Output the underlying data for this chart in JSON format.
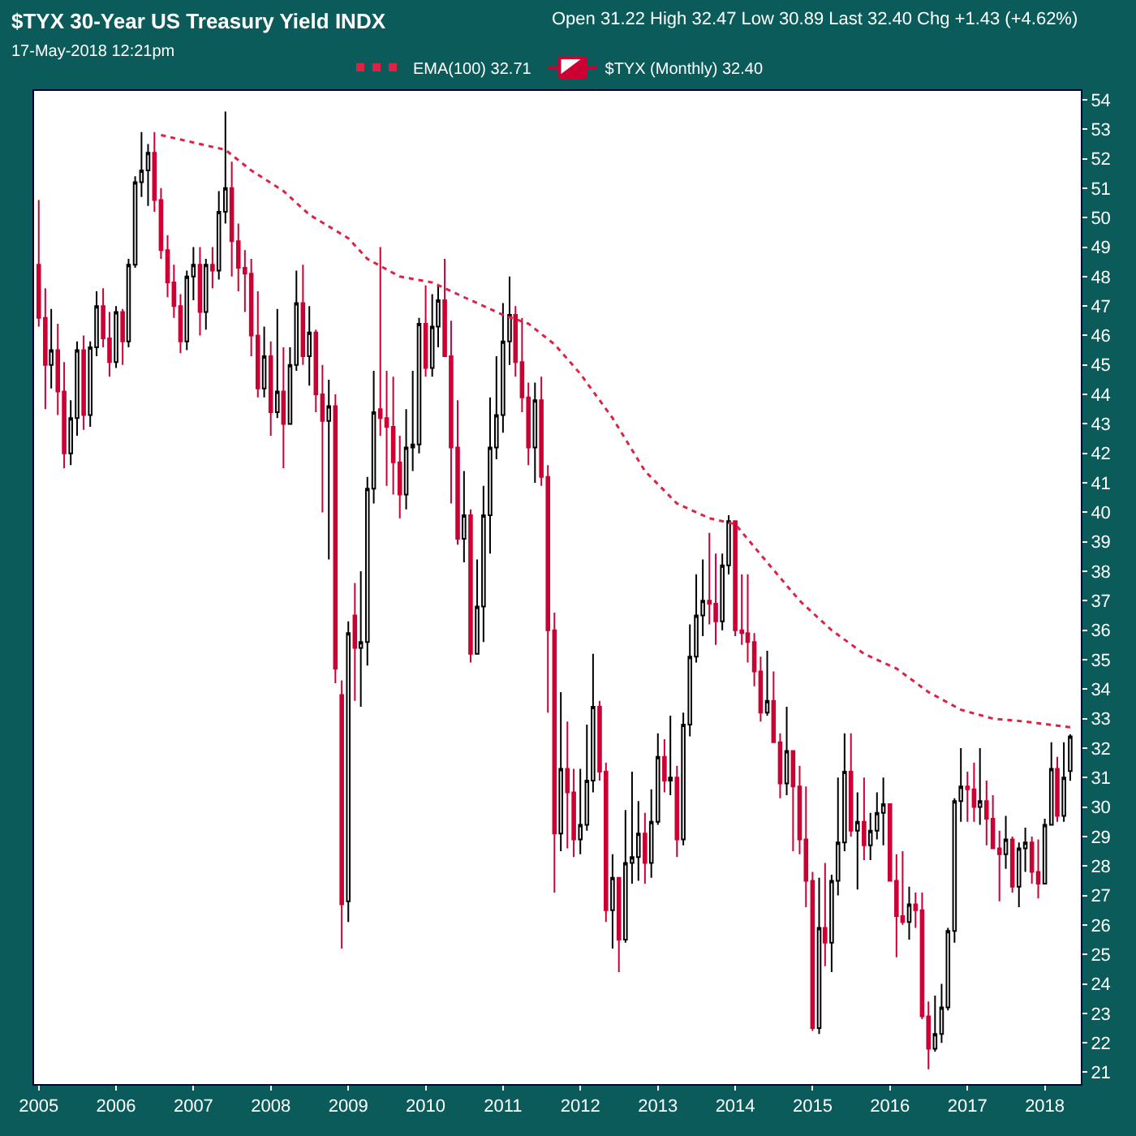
{
  "chart_data": {
    "type": "candlestick",
    "title": "$TYX 30-Year US Treasury Yield INDX",
    "subtitle": "17-May-2018 12:21pm",
    "annotations": [
      "Open 31.22 High 32.47 Low 30.89 Last 32.40 Chg +1.43 (+4.62%)"
    ],
    "x": [
      "2005-01",
      "2005-02",
      "2005-03",
      "2005-04",
      "2005-05",
      "2005-06",
      "2005-07",
      "2005-08",
      "2005-09",
      "2005-10",
      "2005-11",
      "2005-12",
      "2006-01",
      "2006-02",
      "2006-03",
      "2006-04",
      "2006-05",
      "2006-06",
      "2006-07",
      "2006-08",
      "2006-09",
      "2006-10",
      "2006-11",
      "2006-12",
      "2007-01",
      "2007-02",
      "2007-03",
      "2007-04",
      "2007-05",
      "2007-06",
      "2007-07",
      "2007-08",
      "2007-09",
      "2007-10",
      "2007-11",
      "2007-12",
      "2008-01",
      "2008-02",
      "2008-03",
      "2008-04",
      "2008-05",
      "2008-06",
      "2008-07",
      "2008-08",
      "2008-09",
      "2008-10",
      "2008-11",
      "2008-12",
      "2009-01",
      "2009-02",
      "2009-03",
      "2009-04",
      "2009-05",
      "2009-06",
      "2009-07",
      "2009-08",
      "2009-09",
      "2009-10",
      "2009-11",
      "2009-12",
      "2010-01",
      "2010-02",
      "2010-03",
      "2010-04",
      "2010-05",
      "2010-06",
      "2010-07",
      "2010-08",
      "2010-09",
      "2010-10",
      "2010-11",
      "2010-12",
      "2011-01",
      "2011-02",
      "2011-03",
      "2011-04",
      "2011-05",
      "2011-06",
      "2011-07",
      "2011-08",
      "2011-09",
      "2011-10",
      "2011-11",
      "2011-12",
      "2012-01",
      "2012-02",
      "2012-03",
      "2012-04",
      "2012-05",
      "2012-06",
      "2012-07",
      "2012-08",
      "2012-09",
      "2012-10",
      "2012-11",
      "2012-12",
      "2013-01",
      "2013-02",
      "2013-03",
      "2013-04",
      "2013-05",
      "2013-06",
      "2013-07",
      "2013-08",
      "2013-09",
      "2013-10",
      "2013-11",
      "2013-12",
      "2014-01",
      "2014-02",
      "2014-03",
      "2014-04",
      "2014-05",
      "2014-06",
      "2014-07",
      "2014-08",
      "2014-09",
      "2014-10",
      "2014-11",
      "2014-12",
      "2015-01",
      "2015-02",
      "2015-03",
      "2015-04",
      "2015-05",
      "2015-06",
      "2015-07",
      "2015-08",
      "2015-09",
      "2015-10",
      "2015-11",
      "2015-12",
      "2016-01",
      "2016-02",
      "2016-03",
      "2016-04",
      "2016-05",
      "2016-06",
      "2016-07",
      "2016-08",
      "2016-09",
      "2016-10",
      "2016-11",
      "2016-12",
      "2017-01",
      "2017-02",
      "2017-03",
      "2017-04",
      "2017-05",
      "2017-06",
      "2017-07",
      "2017-08",
      "2017-09",
      "2017-10",
      "2017-11",
      "2017-12",
      "2018-01",
      "2018-02",
      "2018-03",
      "2018-04",
      "2018-05"
    ],
    "series": [
      {
        "name": "$TYX (Monthly) 32.40",
        "type": "candlestick",
        "colors": [
          "#cc0033",
          "#cc0033",
          "#000000",
          "#cc0033",
          "#cc0033",
          "#000000",
          "#000000",
          "#cc0033",
          "#000000",
          "#000000",
          "#cc0033",
          "#cc0033",
          "#000000",
          "#cc0033",
          "#000000",
          "#000000",
          "#000000",
          "#000000",
          "#cc0033",
          "#cc0033",
          "#cc0033",
          "#cc0033",
          "#cc0033",
          "#000000",
          "#000000",
          "#cc0033",
          "#000000",
          "#cc0033",
          "#000000",
          "#000000",
          "#cc0033",
          "#cc0033",
          "#cc0033",
          "#cc0033",
          "#cc0033",
          "#000000",
          "#cc0033",
          "#000000",
          "#cc0033",
          "#000000",
          "#000000",
          "#cc0033",
          "#000000",
          "#cc0033",
          "#cc0033",
          "#000000",
          "#cc0033",
          "#cc0033",
          "#000000",
          "#cc0033",
          "#000000",
          "#000000",
          "#000000",
          "#cc0033",
          "#cc0033",
          "#cc0033",
          "#cc0033",
          "#000000",
          "#000000",
          "#000000",
          "#cc0033",
          "#000000",
          "#000000",
          "#cc0033",
          "#cc0033",
          "#cc0033",
          "#000000",
          "#cc0033",
          "#000000",
          "#000000",
          "#000000",
          "#000000",
          "#000000",
          "#000000",
          "#cc0033",
          "#cc0033",
          "#cc0033",
          "#000000",
          "#cc0033",
          "#cc0033",
          "#cc0033",
          "#000000",
          "#cc0033",
          "#cc0033",
          "#000000",
          "#000000",
          "#000000",
          "#cc0033",
          "#cc0033",
          "#000000",
          "#cc0033",
          "#000000",
          "#000000",
          "#000000",
          "#cc0033",
          "#000000",
          "#000000",
          "#cc0033",
          "#000000",
          "#cc0033",
          "#000000",
          "#000000",
          "#000000",
          "#000000",
          "#cc0033",
          "#cc0033",
          "#000000",
          "#000000",
          "#cc0033",
          "#cc0033",
          "#cc0033",
          "#cc0033",
          "#cc0033",
          "#000000",
          "#cc0033",
          "#cc0033",
          "#000000",
          "#cc0033",
          "#cc0033",
          "#cc0033",
          "#cc0033",
          "#000000",
          "#cc0033",
          "#000000",
          "#000000",
          "#000000",
          "#cc0033",
          "#000000",
          "#cc0033",
          "#000000",
          "#000000",
          "#000000",
          "#cc0033",
          "#cc0033",
          "#cc0033",
          "#000000",
          "#cc0033",
          "#cc0033",
          "#cc0033",
          "#000000",
          "#000000",
          "#000000",
          "#000000",
          "#000000",
          "#cc0033",
          "#cc0033",
          "#000000",
          "#cc0033",
          "#cc0033",
          "#cc0033",
          "#000000",
          "#cc0033",
          "#000000",
          "#000000",
          "#cc0033",
          "#cc0033",
          "#000000",
          "#000000",
          "#cc0033",
          "#000000",
          "#000000"
        ],
        "ohlc": [
          [
            48.4,
            50.6,
            46.3,
            46.6
          ],
          [
            46.6,
            47.6,
            43.5,
            45.0
          ],
          [
            45.0,
            46.9,
            44.2,
            45.5
          ],
          [
            45.5,
            46.4,
            43.3,
            44.1
          ],
          [
            44.1,
            45.1,
            41.5,
            42.0
          ],
          [
            42.0,
            43.8,
            41.6,
            43.2
          ],
          [
            43.2,
            45.8,
            42.6,
            45.5
          ],
          [
            45.5,
            46.0,
            42.8,
            43.3
          ],
          [
            43.3,
            45.8,
            42.9,
            45.6
          ],
          [
            45.6,
            47.5,
            45.3,
            47.0
          ],
          [
            47.0,
            47.6,
            45.6,
            45.9
          ],
          [
            45.9,
            46.8,
            44.6,
            45.1
          ],
          [
            45.1,
            47.0,
            44.9,
            46.8
          ],
          [
            46.8,
            46.9,
            45.0,
            45.8
          ],
          [
            45.8,
            48.6,
            45.6,
            48.4
          ],
          [
            48.4,
            51.4,
            48.3,
            51.2
          ],
          [
            51.2,
            52.9,
            50.7,
            51.6
          ],
          [
            51.6,
            52.5,
            50.4,
            52.2
          ],
          [
            52.2,
            52.9,
            50.2,
            50.6
          ],
          [
            50.6,
            51.0,
            48.6,
            48.9
          ],
          [
            48.9,
            49.4,
            47.3,
            47.8
          ],
          [
            47.8,
            48.4,
            46.6,
            47.0
          ],
          [
            47.0,
            47.4,
            45.4,
            45.8
          ],
          [
            45.8,
            48.2,
            45.5,
            48.0
          ],
          [
            48.0,
            49.0,
            47.2,
            48.4
          ],
          [
            48.4,
            49.0,
            46.0,
            46.8
          ],
          [
            46.8,
            48.6,
            46.2,
            48.4
          ],
          [
            48.4,
            49.0,
            47.6,
            48.2
          ],
          [
            48.2,
            50.9,
            47.9,
            50.2
          ],
          [
            50.2,
            53.6,
            49.8,
            51.0
          ],
          [
            51.0,
            51.9,
            48.0,
            49.2
          ],
          [
            49.2,
            49.8,
            47.5,
            48.3
          ],
          [
            48.3,
            48.9,
            46.8,
            48.1
          ],
          [
            48.1,
            48.6,
            45.3,
            46.0
          ],
          [
            46.0,
            47.5,
            43.9,
            44.2
          ],
          [
            44.2,
            46.3,
            43.9,
            45.3
          ],
          [
            45.3,
            45.8,
            42.6,
            43.4
          ],
          [
            43.4,
            46.9,
            43.2,
            44.1
          ],
          [
            44.1,
            45.6,
            41.5,
            43.0
          ],
          [
            43.0,
            45.6,
            43.0,
            45.0
          ],
          [
            45.0,
            48.2,
            44.8,
            47.1
          ],
          [
            47.1,
            48.4,
            45.0,
            45.3
          ],
          [
            45.3,
            47.0,
            44.3,
            46.1
          ],
          [
            46.1,
            46.2,
            43.4,
            44.0
          ],
          [
            44.0,
            45.0,
            40.0,
            43.1
          ],
          [
            43.1,
            44.5,
            38.4,
            43.6
          ],
          [
            43.6,
            44.0,
            34.2,
            34.7
          ],
          [
            33.8,
            34.3,
            25.2,
            26.7
          ],
          [
            26.8,
            36.3,
            26.1,
            35.9
          ],
          [
            36.5,
            37.6,
            33.6,
            35.4
          ],
          [
            35.4,
            38.0,
            33.4,
            35.6
          ],
          [
            35.6,
            41.2,
            34.8,
            40.8
          ],
          [
            40.8,
            44.8,
            40.3,
            43.4
          ],
          [
            43.5,
            49.0,
            42.6,
            43.2
          ],
          [
            43.2,
            44.8,
            40.9,
            42.9
          ],
          [
            42.9,
            44.6,
            40.6,
            41.7
          ],
          [
            41.7,
            42.6,
            39.8,
            40.6
          ],
          [
            40.6,
            43.5,
            40.1,
            42.2
          ],
          [
            42.2,
            44.8,
            41.4,
            42.3
          ],
          [
            42.3,
            46.6,
            42.0,
            46.4
          ],
          [
            46.4,
            47.7,
            44.6,
            44.9
          ],
          [
            44.9,
            47.4,
            44.6,
            46.3
          ],
          [
            46.3,
            47.7,
            45.6,
            47.2
          ],
          [
            47.2,
            48.6,
            45.3,
            45.3
          ],
          [
            45.3,
            46.5,
            40.3,
            42.2
          ],
          [
            42.2,
            43.8,
            38.9,
            39.1
          ],
          [
            39.1,
            41.4,
            38.3,
            39.9
          ],
          [
            39.9,
            40.1,
            34.9,
            35.2
          ],
          [
            35.2,
            38.4,
            35.2,
            36.8
          ],
          [
            36.8,
            40.9,
            35.6,
            39.9
          ],
          [
            39.9,
            43.9,
            38.6,
            42.2
          ],
          [
            42.2,
            45.3,
            41.8,
            43.3
          ],
          [
            43.3,
            47.1,
            42.7,
            45.8
          ],
          [
            45.8,
            48.0,
            45.0,
            46.7
          ],
          [
            46.7,
            47.0,
            44.6,
            45.1
          ],
          [
            45.1,
            46.6,
            43.4,
            43.9
          ],
          [
            43.9,
            44.4,
            41.6,
            42.2
          ],
          [
            42.2,
            44.4,
            41.0,
            43.8
          ],
          [
            43.8,
            44.6,
            40.9,
            41.2
          ],
          [
            41.2,
            41.6,
            33.2,
            36.0
          ],
          [
            36.0,
            36.6,
            27.1,
            29.1
          ],
          [
            29.1,
            33.9,
            28.5,
            31.3
          ],
          [
            31.3,
            32.9,
            28.6,
            30.5
          ],
          [
            30.5,
            31.3,
            28.3,
            28.9
          ],
          [
            28.9,
            31.3,
            28.4,
            29.4
          ],
          [
            29.4,
            32.8,
            29.2,
            30.9
          ],
          [
            30.9,
            35.2,
            30.5,
            33.4
          ],
          [
            33.4,
            33.6,
            30.9,
            31.2
          ],
          [
            31.2,
            31.5,
            26.1,
            26.5
          ],
          [
            26.5,
            28.4,
            25.2,
            27.6
          ],
          [
            27.6,
            27.6,
            24.4,
            25.5
          ],
          [
            25.5,
            29.9,
            25.4,
            28.1
          ],
          [
            28.1,
            31.2,
            27.4,
            28.3
          ],
          [
            28.3,
            30.2,
            27.5,
            29.1
          ],
          [
            29.1,
            29.8,
            27.4,
            28.1
          ],
          [
            28.1,
            30.6,
            27.6,
            29.5
          ],
          [
            29.5,
            32.5,
            29.4,
            31.7
          ],
          [
            31.7,
            32.3,
            30.5,
            30.9
          ],
          [
            30.9,
            33.1,
            30.4,
            31.0
          ],
          [
            31.0,
            31.4,
            28.3,
            28.9
          ],
          [
            28.9,
            33.2,
            28.7,
            32.8
          ],
          [
            32.8,
            36.2,
            32.4,
            35.1
          ],
          [
            35.1,
            37.9,
            34.9,
            36.5
          ],
          [
            36.5,
            38.4,
            35.8,
            37.0
          ],
          [
            37.0,
            39.3,
            36.2,
            36.9
          ],
          [
            36.9,
            38.6,
            35.5,
            36.3
          ],
          [
            36.3,
            38.6,
            36.0,
            38.2
          ],
          [
            38.2,
            39.9,
            37.9,
            39.7
          ],
          [
            39.7,
            39.7,
            35.8,
            36.0
          ],
          [
            36.0,
            37.9,
            35.5,
            35.9
          ],
          [
            35.9,
            37.9,
            34.9,
            35.6
          ],
          [
            35.6,
            35.9,
            34.1,
            34.6
          ],
          [
            34.6,
            35.1,
            32.9,
            33.2
          ],
          [
            33.2,
            35.3,
            33.1,
            33.6
          ],
          [
            33.6,
            34.6,
            32.2,
            32.2
          ],
          [
            32.2,
            32.5,
            30.3,
            30.8
          ],
          [
            30.8,
            33.4,
            30.4,
            31.9
          ],
          [
            31.9,
            31.9,
            28.5,
            30.7
          ],
          [
            30.7,
            31.4,
            28.4,
            28.9
          ],
          [
            28.9,
            30.7,
            26.6,
            27.5
          ],
          [
            27.5,
            27.8,
            22.4,
            22.5
          ],
          [
            22.5,
            27.6,
            22.3,
            25.9
          ],
          [
            25.9,
            28.1,
            24.6,
            25.4
          ],
          [
            25.4,
            27.7,
            24.4,
            27.5
          ],
          [
            27.5,
            31.0,
            27.0,
            28.8
          ],
          [
            28.8,
            32.5,
            28.5,
            31.2
          ],
          [
            31.2,
            32.5,
            29.0,
            29.2
          ],
          [
            29.2,
            30.5,
            27.2,
            29.5
          ],
          [
            29.5,
            31.0,
            28.2,
            28.7
          ],
          [
            28.7,
            29.8,
            28.2,
            29.2
          ],
          [
            29.2,
            30.5,
            28.9,
            29.8
          ],
          [
            29.8,
            31.0,
            28.7,
            30.1
          ],
          [
            30.1,
            30.1,
            27.5,
            27.5
          ],
          [
            27.5,
            28.4,
            24.9,
            26.3
          ],
          [
            26.3,
            28.5,
            26.0,
            26.1
          ],
          [
            26.1,
            27.3,
            25.5,
            26.7
          ],
          [
            26.7,
            27.1,
            25.9,
            26.5
          ],
          [
            26.5,
            27.1,
            22.8,
            22.9
          ],
          [
            22.9,
            23.4,
            21.1,
            21.8
          ],
          [
            21.8,
            23.6,
            21.7,
            22.3
          ],
          [
            22.3,
            24.0,
            22.0,
            23.2
          ],
          [
            23.2,
            25.9,
            23.1,
            25.8
          ],
          [
            25.8,
            30.3,
            25.4,
            30.2
          ],
          [
            30.2,
            32.0,
            29.5,
            30.7
          ],
          [
            30.7,
            31.2,
            29.5,
            30.6
          ],
          [
            30.6,
            31.5,
            29.5,
            30.0
          ],
          [
            30.0,
            32.0,
            29.4,
            30.2
          ],
          [
            30.2,
            30.9,
            28.7,
            29.6
          ],
          [
            29.6,
            30.4,
            28.6,
            28.6
          ],
          [
            28.6,
            29.2,
            26.8,
            28.4
          ],
          [
            28.4,
            29.7,
            27.9,
            28.9
          ],
          [
            28.9,
            29.0,
            27.1,
            27.3
          ],
          [
            27.3,
            28.8,
            26.6,
            28.6
          ],
          [
            28.6,
            29.3,
            27.8,
            28.8
          ],
          [
            28.8,
            29.0,
            27.4,
            27.8
          ],
          [
            27.8,
            28.9,
            26.9,
            27.4
          ],
          [
            27.4,
            29.6,
            27.4,
            29.4
          ],
          [
            29.4,
            32.2,
            29.4,
            31.3
          ],
          [
            31.3,
            31.7,
            29.5,
            29.7
          ],
          [
            29.7,
            32.2,
            29.5,
            31.0
          ],
          [
            31.22,
            32.47,
            30.89,
            32.4
          ]
        ]
      },
      {
        "name": "EMA(100) 32.71",
        "type": "line",
        "color": "#dd2244",
        "line_style": "dotted",
        "marker": "none",
        "x": [
          "2006-08",
          "2007-06",
          "2007-10",
          "2008-03",
          "2008-07",
          "2009-01",
          "2009-04",
          "2009-09",
          "2010-02",
          "2010-07",
          "2011-01",
          "2011-05",
          "2011-09",
          "2012-01",
          "2012-06",
          "2012-11",
          "2013-04",
          "2013-09",
          "2014-01",
          "2014-06",
          "2014-11",
          "2015-04",
          "2015-09",
          "2016-02",
          "2016-07",
          "2016-12",
          "2017-05",
          "2017-10",
          "2018-05"
        ],
        "values": [
          52.8,
          52.3,
          51.6,
          50.9,
          50.1,
          49.3,
          48.6,
          48.0,
          47.8,
          47.3,
          46.7,
          46.4,
          45.7,
          44.7,
          43.2,
          41.4,
          40.3,
          39.8,
          39.6,
          38.3,
          37.0,
          36.0,
          35.2,
          34.7,
          33.9,
          33.3,
          33.0,
          32.9,
          32.71
        ]
      }
    ],
    "xlim": [
      "2004-12-10",
      "2018-06-20"
    ],
    "xticks": [
      "2005",
      "2006",
      "2007",
      "2008",
      "2009",
      "2010",
      "2011",
      "2012",
      "2013",
      "2014",
      "2015",
      "2016",
      "2017",
      "2018"
    ],
    "ylim": [
      20.6,
      54.3
    ],
    "yticks": [
      21,
      22,
      23,
      24,
      25,
      26,
      27,
      28,
      29,
      30,
      31,
      32,
      33,
      34,
      35,
      36,
      37,
      38,
      39,
      40,
      41,
      42,
      43,
      44,
      45,
      46,
      47,
      48,
      49,
      50,
      51,
      52,
      53,
      54
    ],
    "grid": false,
    "legend": "top left"
  }
}
